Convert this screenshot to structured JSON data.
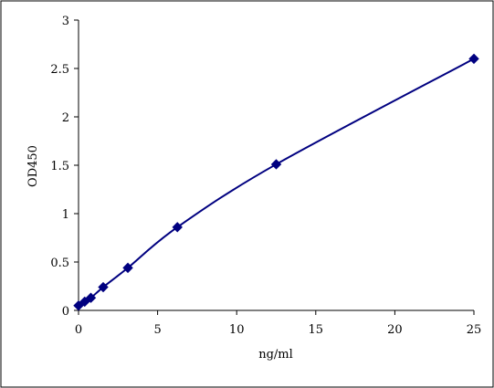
{
  "chart_data": {
    "type": "scatter",
    "title": "",
    "xlabel": "ng/ml",
    "ylabel": "OD450",
    "xlim": [
      0,
      25
    ],
    "ylim": [
      0,
      3
    ],
    "xticks": [
      0,
      5,
      10,
      15,
      20,
      25
    ],
    "yticks": [
      0,
      0.5,
      1,
      1.5,
      2,
      2.5,
      3
    ],
    "ytick_labels": [
      "0",
      "0.5",
      "1",
      "1.5",
      "2",
      "2.5",
      "3"
    ],
    "grid": false,
    "legend": "none",
    "series": [
      {
        "x": [
          0,
          0.39,
          0.78,
          1.56,
          3.12,
          6.25,
          12.5,
          25
        ],
        "y": [
          0.05,
          0.09,
          0.13,
          0.24,
          0.44,
          0.86,
          1.51,
          2.6
        ],
        "color": "#000080",
        "marker": "diamond",
        "line": "smooth"
      }
    ]
  }
}
